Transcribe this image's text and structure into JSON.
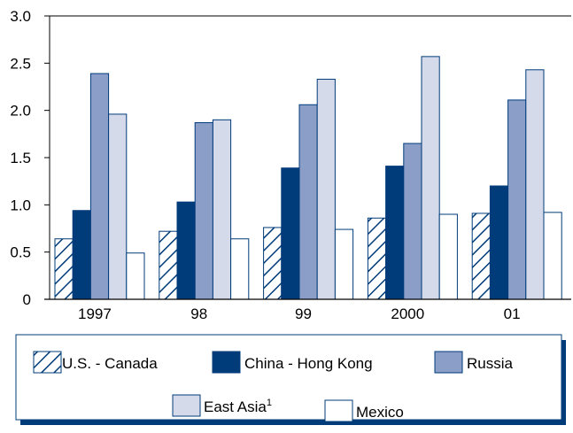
{
  "chart_data": {
    "type": "bar",
    "categories": [
      "1997",
      "98",
      "99",
      "2000",
      "01"
    ],
    "series": [
      {
        "name": "U.S. - Canada",
        "values": [
          0.64,
          0.72,
          0.76,
          0.86,
          0.91
        ],
        "style": "hatch",
        "color": "#003b7a"
      },
      {
        "name": "China - Hong Kong",
        "values": [
          0.94,
          1.03,
          1.39,
          1.41,
          1.2
        ],
        "style": "solid",
        "color": "#003b7a"
      },
      {
        "name": "Russia",
        "values": [
          2.39,
          1.87,
          2.06,
          1.65,
          2.11
        ],
        "style": "solid",
        "color": "#8a9ec8"
      },
      {
        "name": "East Asia",
        "name_sup": "1",
        "values": [
          1.96,
          1.9,
          2.33,
          2.57,
          2.43
        ],
        "style": "solid",
        "color": "#d5daea"
      },
      {
        "name": "Mexico",
        "values": [
          0.49,
          0.64,
          0.74,
          0.9,
          0.92
        ],
        "style": "solid",
        "color": "#ffffff"
      }
    ],
    "y_ticks": [
      "0",
      "0.5",
      "1.0",
      "1.5",
      "2.0",
      "2.5",
      "3.0"
    ],
    "ylim": [
      0,
      3.0
    ],
    "title": "",
    "xlabel": "",
    "ylabel": "",
    "grid": false,
    "legend_position": "bottom",
    "colors": {
      "accent": "#003b7a",
      "legend_shadow": "#003b7a"
    }
  }
}
